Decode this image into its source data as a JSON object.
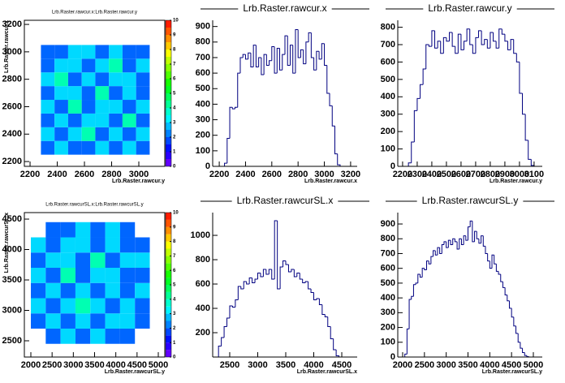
{
  "chart_data": [
    {
      "type": "heatmap",
      "title": "Lrb.Raster.rawcur.x:Lrb.Raster.rawcur.y",
      "xlabel": "Lrb.Raster.rawcur.y",
      "ylabel": "Lrb.Raster.rawcur.x",
      "x_bins": [
        2280,
        2380,
        2480,
        2580,
        2680,
        2780,
        2880,
        2980,
        3080
      ],
      "y_bins": [
        2250,
        2350,
        2450,
        2550,
        2650,
        2750,
        2850,
        2950,
        3050
      ],
      "z": [
        [
          2,
          3,
          2,
          2,
          3,
          2,
          3,
          2
        ],
        [
          3,
          2,
          3,
          4,
          2,
          3,
          2,
          3
        ],
        [
          2,
          3,
          2,
          3,
          3,
          2,
          4,
          2
        ],
        [
          3,
          2,
          4,
          2,
          3,
          3,
          2,
          3
        ],
        [
          2,
          3,
          3,
          2,
          4,
          2,
          3,
          2
        ],
        [
          3,
          4,
          2,
          3,
          2,
          3,
          3,
          2
        ],
        [
          2,
          3,
          3,
          2,
          3,
          4,
          2,
          3
        ],
        [
          2,
          2,
          3,
          3,
          2,
          3,
          2,
          2
        ]
      ],
      "xlim": [
        2158,
        3191
      ],
      "ylim": [
        2165,
        3230
      ],
      "xticks": [
        2200,
        2400,
        2600,
        2800,
        3000
      ],
      "yticks": [
        2200,
        2400,
        2600,
        2800,
        3000,
        3200
      ],
      "zlim": [
        0,
        10
      ],
      "zticks": [
        0,
        1,
        2,
        3,
        4,
        5,
        6,
        7,
        8,
        9,
        10
      ]
    },
    {
      "type": "histogram",
      "title": "Lrb.Raster.rawcur.x",
      "xlabel": "Lrb.Raster.rawcur.x",
      "color": "#000080",
      "bins": [
        2220,
        2240,
        2260,
        2280,
        2300,
        2320,
        2340,
        2360,
        2380,
        2400,
        2420,
        2440,
        2460,
        2480,
        2500,
        2520,
        2540,
        2560,
        2580,
        2600,
        2620,
        2640,
        2660,
        2680,
        2700,
        2720,
        2740,
        2760,
        2780,
        2800,
        2820,
        2840,
        2860,
        2880,
        2900,
        2920,
        2940,
        2960,
        2980,
        3000,
        3020,
        3040,
        3060,
        3080,
        3100,
        3120
      ],
      "values": [
        0,
        20,
        180,
        380,
        370,
        380,
        600,
        700,
        720,
        690,
        730,
        640,
        780,
        640,
        700,
        590,
        720,
        650,
        680,
        770,
        600,
        760,
        620,
        720,
        840,
        650,
        780,
        600,
        880,
        700,
        750,
        660,
        800,
        860,
        700,
        620,
        740,
        690,
        790,
        650,
        470,
        390,
        260,
        80,
        10
      ],
      "xlim": [
        2150,
        3250
      ],
      "ylim": [
        0,
        940
      ],
      "xticks": [
        2200,
        2400,
        2600,
        2800,
        3000,
        3200
      ],
      "yticks": [
        0,
        100,
        200,
        300,
        400,
        500,
        600,
        700,
        800,
        900
      ]
    },
    {
      "type": "histogram",
      "title": "Lrb.Raster.rawcur.y",
      "xlabel": "Lrb.Raster.rawcur.y",
      "color": "#000080",
      "bins": [
        2220,
        2240,
        2260,
        2280,
        2300,
        2320,
        2340,
        2360,
        2380,
        2400,
        2420,
        2440,
        2460,
        2480,
        2500,
        2520,
        2540,
        2560,
        2580,
        2600,
        2620,
        2640,
        2660,
        2680,
        2700,
        2720,
        2740,
        2760,
        2780,
        2800,
        2820,
        2840,
        2860,
        2880,
        2900,
        2920,
        2940,
        2960,
        2980,
        3000,
        3020,
        3040,
        3060,
        3080,
        3100
      ],
      "values": [
        0,
        20,
        140,
        320,
        390,
        470,
        560,
        700,
        690,
        780,
        680,
        720,
        650,
        740,
        720,
        770,
        690,
        650,
        760,
        670,
        720,
        790,
        700,
        650,
        740,
        780,
        700,
        730,
        680,
        770,
        720,
        680,
        790,
        760,
        720,
        670,
        730,
        650,
        600,
        420,
        300,
        150,
        40,
        5
      ],
      "xlim": [
        2167,
        3156
      ],
      "ylim": [
        0,
        840
      ],
      "xticks": [
        2200,
        2300,
        2400,
        2500,
        2600,
        2700,
        2800,
        2900,
        3000,
        3100
      ],
      "yticks": [
        0,
        100,
        200,
        300,
        400,
        500,
        600,
        700,
        800
      ]
    },
    {
      "type": "heatmap",
      "title": "Lrb.Raster.rawcurSL.x:Lrb.Raster.rawcurSL.y",
      "xlabel": "Lrb.Raster.rawcurSL.y",
      "ylabel": "Lrb.Raster.rawcurSL.x",
      "x_bins": [
        2000,
        2350,
        2700,
        3050,
        3400,
        3750,
        4100,
        4450,
        4800
      ],
      "y_bins": [
        2450,
        2700,
        2950,
        3200,
        3450,
        3700,
        3950,
        4200,
        4450
      ],
      "z": [
        [
          null,
          2,
          3,
          2,
          3,
          2,
          2,
          null
        ],
        [
          2,
          3,
          2,
          3,
          2,
          3,
          3,
          2
        ],
        [
          3,
          2,
          3,
          4,
          3,
          2,
          3,
          2
        ],
        [
          2,
          3,
          2,
          3,
          2,
          3,
          2,
          3
        ],
        [
          3,
          2,
          4,
          2,
          3,
          3,
          2,
          2
        ],
        [
          2,
          3,
          3,
          2,
          4,
          2,
          3,
          3
        ],
        [
          3,
          2,
          3,
          3,
          2,
          3,
          2,
          2
        ],
        [
          null,
          2,
          2,
          3,
          2,
          3,
          2,
          null
        ]
      ],
      "xlim": [
        1847,
        5153
      ],
      "ylim": [
        2233,
        4607
      ],
      "xticks": [
        2000,
        2500,
        3000,
        3500,
        4000,
        4500,
        5000
      ],
      "yticks": [
        2500,
        3000,
        3500,
        4000,
        4500
      ],
      "zlim": [
        0,
        10
      ],
      "zticks": [
        0,
        1,
        2,
        3,
        4,
        5,
        6,
        7,
        8,
        9,
        10
      ]
    },
    {
      "type": "histogram",
      "title": "Lrb.Raster.rawcurSL.x",
      "xlabel": "Lrb.Raster.rawcurSL.x",
      "color": "#000080",
      "bins": [
        2250,
        2300,
        2350,
        2400,
        2450,
        2500,
        2550,
        2600,
        2650,
        2700,
        2750,
        2800,
        2850,
        2900,
        2950,
        3000,
        3050,
        3100,
        3150,
        3200,
        3250,
        3300,
        3350,
        3400,
        3450,
        3500,
        3550,
        3600,
        3650,
        3700,
        3750,
        3800,
        3850,
        3900,
        3950,
        4000,
        4050,
        4100,
        4150,
        4200,
        4250,
        4300,
        4350,
        4400,
        4450
      ],
      "values": [
        0,
        90,
        160,
        250,
        320,
        420,
        410,
        470,
        580,
        560,
        620,
        600,
        650,
        610,
        640,
        690,
        660,
        720,
        680,
        720,
        640,
        1120,
        560,
        740,
        790,
        760,
        700,
        720,
        660,
        690,
        640,
        610,
        620,
        560,
        530,
        470,
        480,
        430,
        350,
        330,
        250,
        150,
        60,
        10
      ],
      "xlim": [
        2196,
        4775
      ],
      "ylim": [
        0,
        1187
      ],
      "xticks": [
        2500,
        3000,
        3500,
        4000,
        4500
      ],
      "yticks": [
        200,
        400,
        600,
        800,
        1000
      ]
    },
    {
      "type": "histogram",
      "title": "Lrb.Raster.rawcurSL.y",
      "xlabel": "Lrb.Raster.rawcurSL.y",
      "color": "#000080",
      "bins": [
        2050,
        2100,
        2150,
        2200,
        2250,
        2300,
        2350,
        2400,
        2450,
        2500,
        2550,
        2600,
        2650,
        2700,
        2750,
        2800,
        2850,
        2900,
        2950,
        3000,
        3050,
        3100,
        3150,
        3200,
        3250,
        3300,
        3350,
        3400,
        3450,
        3500,
        3550,
        3600,
        3650,
        3700,
        3750,
        3800,
        3850,
        3900,
        3950,
        4000,
        4050,
        4100,
        4150,
        4200,
        4250,
        4300,
        4350,
        4400,
        4450,
        4500,
        4550,
        4600,
        4650,
        4700,
        4750,
        4800,
        4850,
        4900,
        4950
      ],
      "values": [
        20,
        190,
        390,
        410,
        490,
        500,
        560,
        540,
        600,
        590,
        650,
        630,
        680,
        720,
        690,
        740,
        700,
        760,
        780,
        740,
        790,
        760,
        800,
        780,
        730,
        800,
        760,
        820,
        790,
        880,
        920,
        780,
        850,
        800,
        770,
        820,
        750,
        700,
        650,
        600,
        690,
        630,
        580,
        560,
        510,
        470,
        420,
        380,
        330,
        270,
        210,
        160,
        100,
        60,
        30,
        10,
        3,
        0
      ],
      "xlim": [
        1888,
        5205
      ],
      "ylim": [
        0,
        977
      ],
      "xticks": [
        2000,
        2500,
        3000,
        3500,
        4000,
        4500,
        5000
      ],
      "yticks": [
        0,
        100,
        200,
        300,
        400,
        500,
        600,
        700,
        800,
        900
      ]
    }
  ]
}
